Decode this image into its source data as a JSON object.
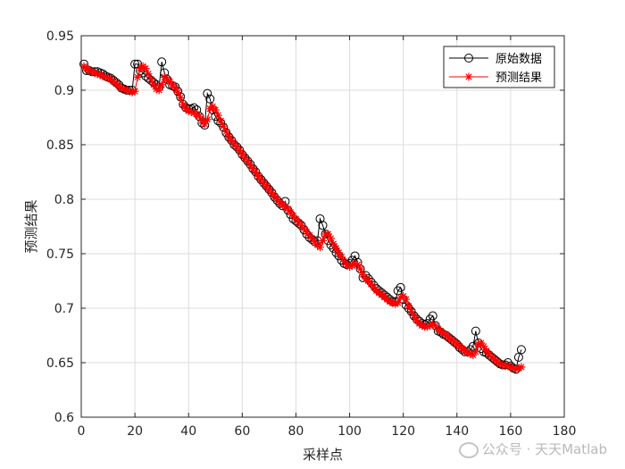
{
  "chart_data": {
    "type": "line",
    "xlabel": "采样点",
    "ylabel": "预测结果",
    "xlim": [
      0,
      180
    ],
    "ylim": [
      0.6,
      0.95
    ],
    "xticks": [
      0,
      20,
      40,
      60,
      80,
      100,
      120,
      140,
      160,
      180
    ],
    "yticks": [
      0.6,
      0.65,
      0.7,
      0.75,
      0.8,
      0.85,
      0.9,
      0.95
    ],
    "ytick_labels": [
      "0.6",
      "0.65",
      "0.7",
      "0.75",
      "0.8",
      "0.85",
      "0.9",
      "0.95"
    ],
    "grid": true,
    "legend": {
      "position": "top-right",
      "entries": [
        "原始数据",
        "预测结果"
      ]
    },
    "series": [
      {
        "name": "原始数据",
        "color": "#000000",
        "marker": "circle",
        "y": [
          0.924,
          0.918,
          0.918,
          0.917,
          0.917,
          0.917,
          0.916,
          0.915,
          0.913,
          0.912,
          0.911,
          0.909,
          0.907,
          0.905,
          0.902,
          0.901,
          0.9,
          0.9,
          0.9,
          0.924,
          0.924,
          0.918,
          0.916,
          0.913,
          0.911,
          0.909,
          0.907,
          0.905,
          0.903,
          0.926,
          0.916,
          0.91,
          0.905,
          0.904,
          0.903,
          0.899,
          0.894,
          0.887,
          0.884,
          0.883,
          0.883,
          0.884,
          0.882,
          0.876,
          0.87,
          0.868,
          0.897,
          0.892,
          0.882,
          0.876,
          0.872,
          0.87,
          0.866,
          0.861,
          0.857,
          0.854,
          0.85,
          0.848,
          0.845,
          0.841,
          0.838,
          0.835,
          0.832,
          0.828,
          0.825,
          0.821,
          0.818,
          0.815,
          0.812,
          0.809,
          0.806,
          0.802,
          0.799,
          0.796,
          0.794,
          0.798,
          0.79,
          0.786,
          0.782,
          0.78,
          0.778,
          0.776,
          0.772,
          0.768,
          0.765,
          0.763,
          0.761,
          0.762,
          0.782,
          0.776,
          0.768,
          0.762,
          0.758,
          0.755,
          0.751,
          0.748,
          0.744,
          0.741,
          0.74,
          0.741,
          0.744,
          0.748,
          0.742,
          0.736,
          0.728,
          0.73,
          0.727,
          0.724,
          0.721,
          0.718,
          0.716,
          0.714,
          0.712,
          0.71,
          0.708,
          0.706,
          0.706,
          0.716,
          0.719,
          0.708,
          0.703,
          0.7,
          0.697,
          0.693,
          0.69,
          0.688,
          0.686,
          0.685,
          0.686,
          0.69,
          0.693,
          0.684,
          0.679,
          0.678,
          0.676,
          0.675,
          0.673,
          0.671,
          0.669,
          0.667,
          0.664,
          0.662,
          0.66,
          0.66,
          0.662,
          0.665,
          0.679,
          0.668,
          0.663,
          0.66,
          0.659,
          0.657,
          0.655,
          0.653,
          0.651,
          0.649,
          0.648,
          0.648,
          0.65,
          0.647,
          0.645,
          0.644,
          0.655,
          0.662
        ]
      },
      {
        "name": "预测结果",
        "color": "#ff0000",
        "marker": "star",
        "y": [
          0.922,
          0.92,
          0.918,
          0.917,
          0.916,
          0.915,
          0.914,
          0.913,
          0.912,
          0.911,
          0.91,
          0.908,
          0.906,
          0.904,
          0.902,
          0.901,
          0.9,
          0.899,
          0.898,
          0.899,
          0.912,
          0.92,
          0.922,
          0.92,
          0.915,
          0.91,
          0.905,
          0.901,
          0.9,
          0.905,
          0.912,
          0.91,
          0.908,
          0.905,
          0.902,
          0.898,
          0.893,
          0.887,
          0.883,
          0.881,
          0.88,
          0.879,
          0.878,
          0.876,
          0.872,
          0.869,
          0.873,
          0.883,
          0.885,
          0.882,
          0.877,
          0.872,
          0.867,
          0.862,
          0.858,
          0.854,
          0.851,
          0.848,
          0.845,
          0.841,
          0.838,
          0.835,
          0.831,
          0.828,
          0.825,
          0.821,
          0.818,
          0.815,
          0.812,
          0.809,
          0.806,
          0.803,
          0.8,
          0.797,
          0.795,
          0.793,
          0.791,
          0.788,
          0.785,
          0.782,
          0.779,
          0.776,
          0.773,
          0.77,
          0.767,
          0.764,
          0.761,
          0.758,
          0.756,
          0.762,
          0.768,
          0.768,
          0.764,
          0.759,
          0.755,
          0.751,
          0.747,
          0.743,
          0.74,
          0.738,
          0.739,
          0.741,
          0.74,
          0.736,
          0.731,
          0.727,
          0.725,
          0.722,
          0.719,
          0.716,
          0.714,
          0.712,
          0.71,
          0.708,
          0.706,
          0.705,
          0.704,
          0.705,
          0.71,
          0.711,
          0.708,
          0.702,
          0.697,
          0.693,
          0.689,
          0.686,
          0.684,
          0.683,
          0.683,
          0.684,
          0.685,
          0.684,
          0.681,
          0.679,
          0.677,
          0.675,
          0.673,
          0.671,
          0.669,
          0.667,
          0.665,
          0.663,
          0.661,
          0.659,
          0.658,
          0.657,
          0.66,
          0.667,
          0.668,
          0.665,
          0.661,
          0.658,
          0.655,
          0.653,
          0.651,
          0.649,
          0.648,
          0.647,
          0.647,
          0.646,
          0.645,
          0.644,
          0.645,
          0.646
        ]
      }
    ]
  },
  "watermark": "公众号 · 天天Matlab"
}
